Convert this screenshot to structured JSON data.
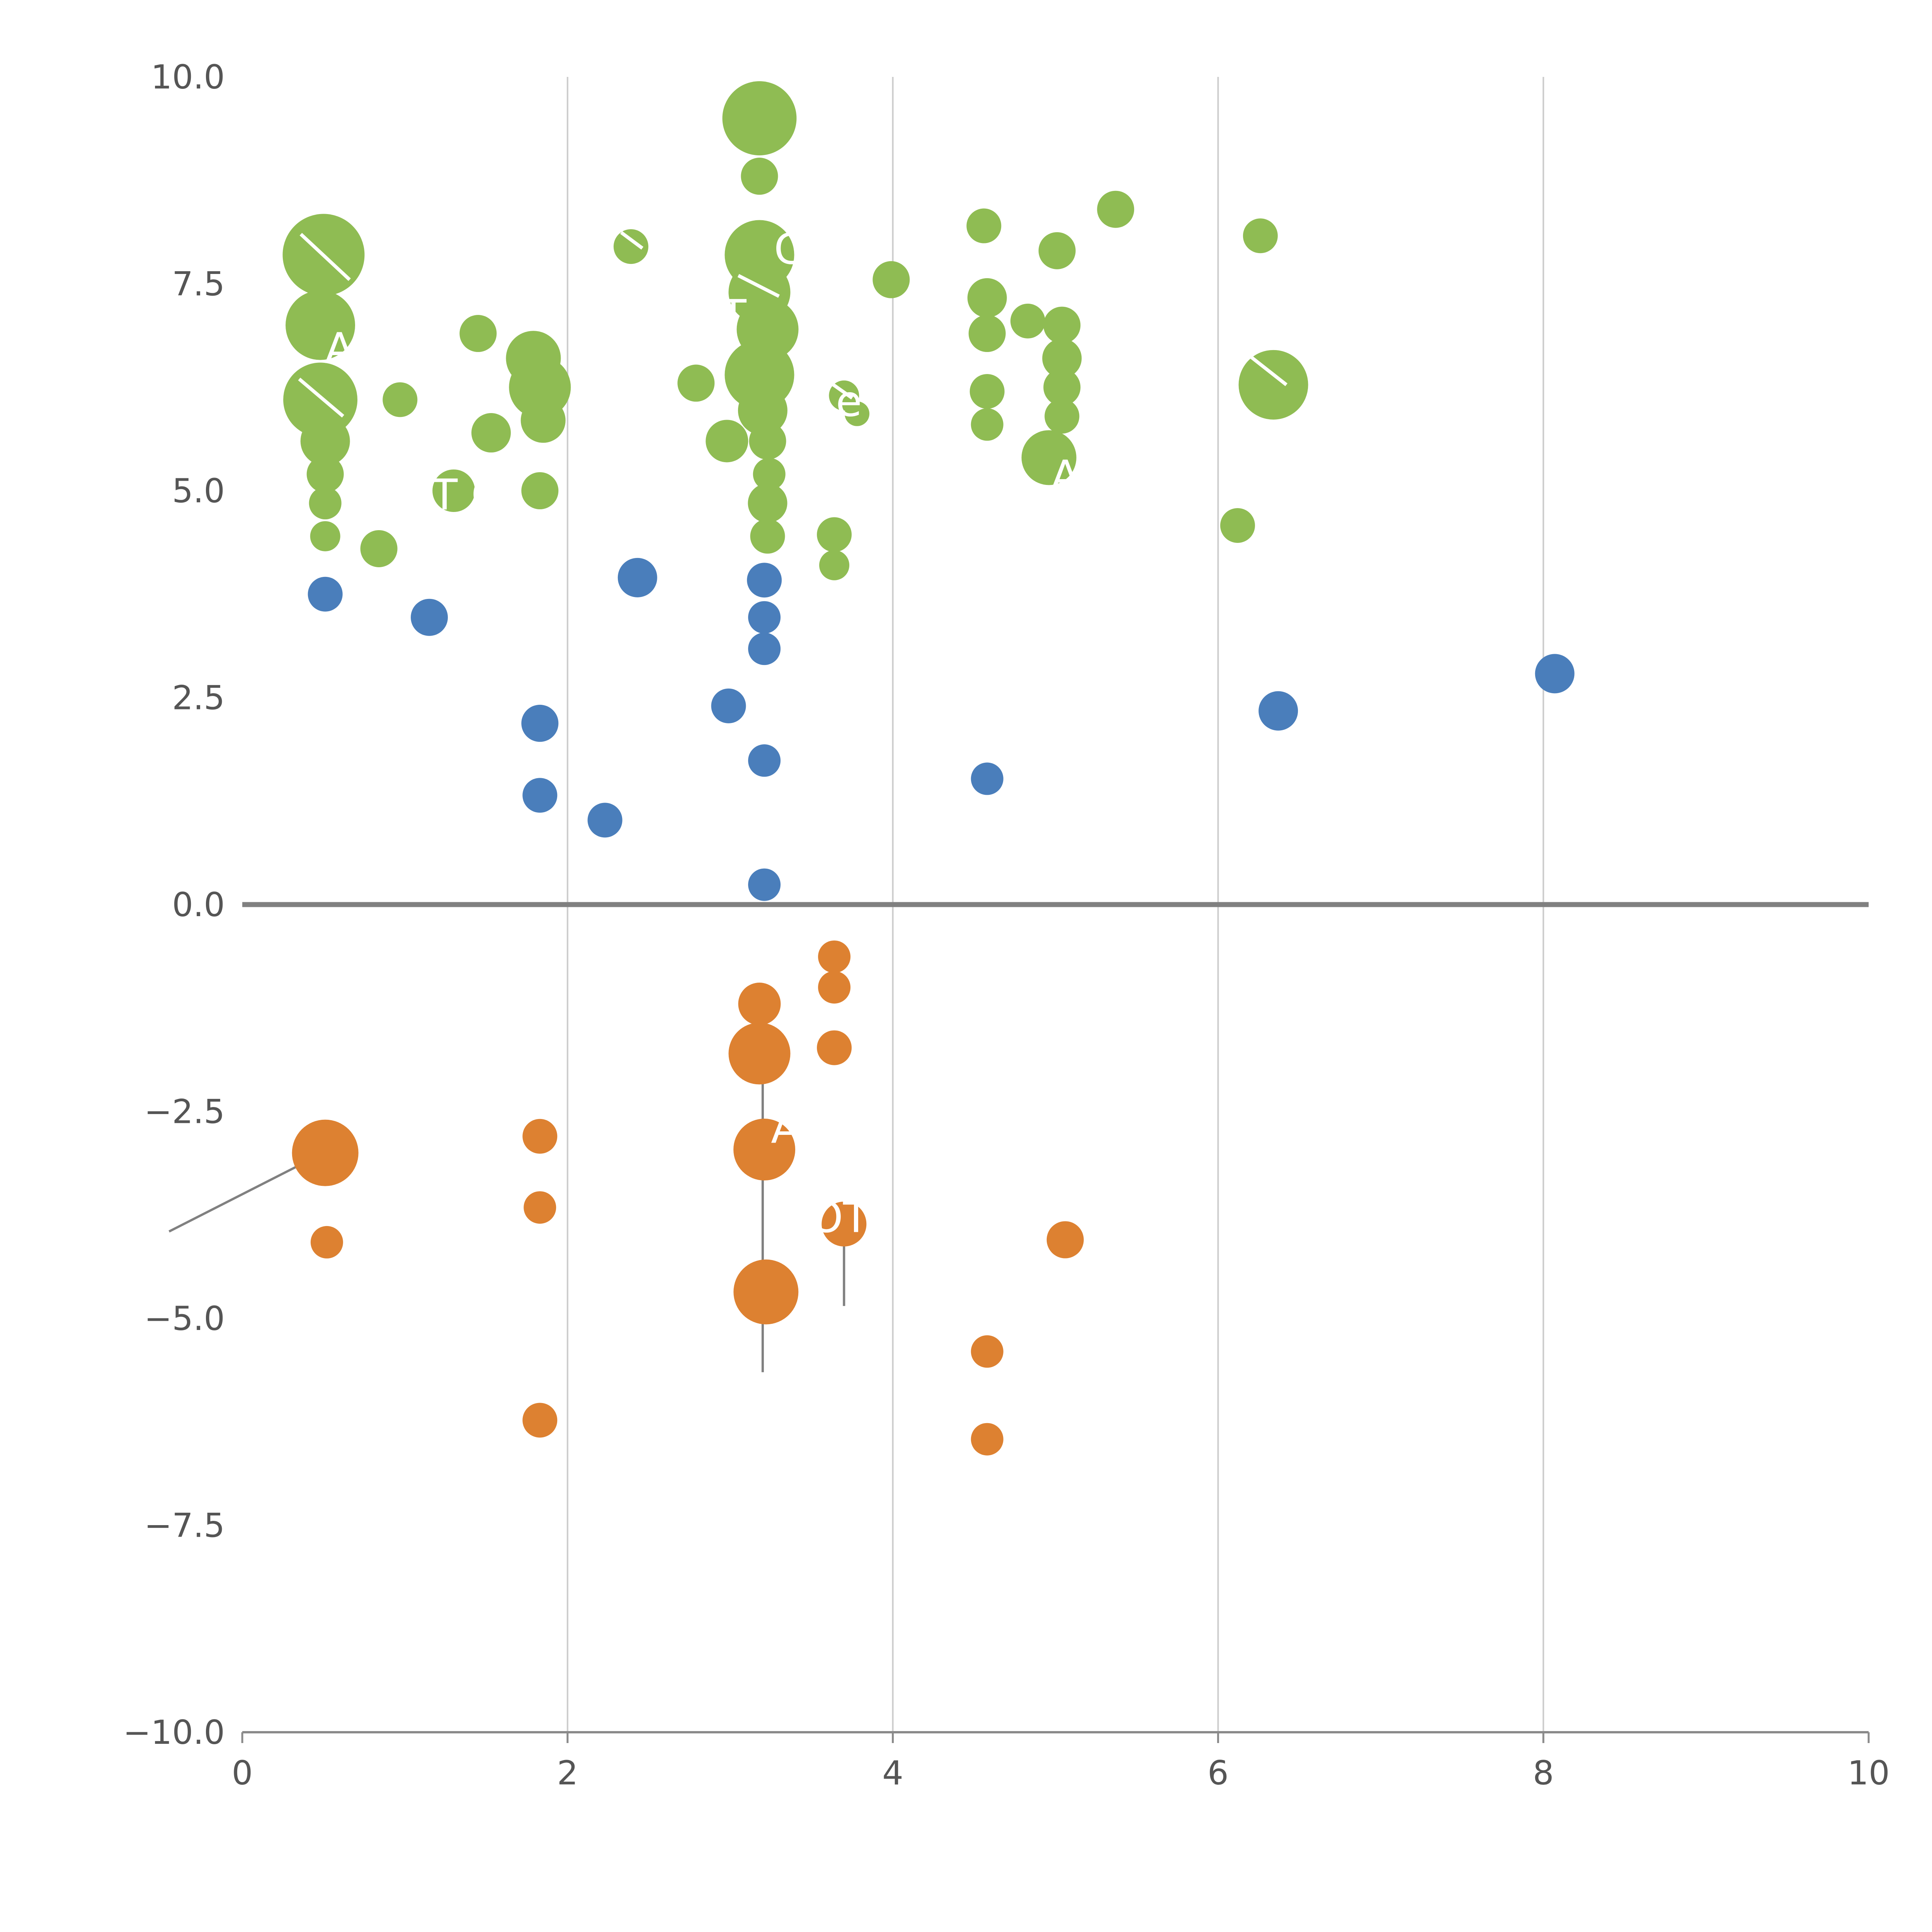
{
  "chart_data": {
    "type": "scatter",
    "title": "",
    "xlabel": "",
    "ylabel": "",
    "xlim": [
      0,
      10
    ],
    "ylim": [
      -10,
      10
    ],
    "x_ticks": [
      0,
      2,
      4,
      6,
      8,
      10
    ],
    "x_tick_labels": [
      "0",
      "2",
      "4",
      "6",
      "8",
      "10"
    ],
    "y_ticks": [
      -10,
      -7.5,
      -5,
      -2.5,
      0,
      2.5,
      5,
      7.5,
      10
    ],
    "y_tick_labels": [
      "−10.0",
      "−7.5",
      "−5.0",
      "−2.5",
      "0.0",
      "2.5",
      "5.0",
      "7.5",
      "10.0"
    ],
    "grid_x": [
      2,
      4,
      6,
      8
    ],
    "grid_color": "#cccccc",
    "zero_line_y": 0,
    "zero_line_color": "#808080",
    "axis_color": "#8a8a8a",
    "tick_label_color": "#555555",
    "legend": "none",
    "series": [
      {
        "name": "green",
        "color": "#8fbc53",
        "points": [
          [
            0.5,
            7.85,
            106
          ],
          [
            0.48,
            7.0,
            90
          ],
          [
            0.48,
            6.1,
            96
          ],
          [
            0.51,
            5.6,
            64
          ],
          [
            0.51,
            5.2,
            48
          ],
          [
            0.51,
            4.85,
            42
          ],
          [
            0.51,
            4.45,
            39
          ],
          [
            0.84,
            4.3,
            48
          ],
          [
            0.97,
            6.1,
            45
          ],
          [
            1.45,
            6.9,
            48
          ],
          [
            1.3,
            5.0,
            55
          ],
          [
            1.53,
            5.7,
            51
          ],
          [
            1.79,
            6.6,
            71
          ],
          [
            1.83,
            6.25,
            80
          ],
          [
            1.85,
            5.85,
            58
          ],
          [
            1.83,
            5.0,
            48
          ],
          [
            2.39,
            7.95,
            45
          ],
          [
            2.79,
            6.3,
            48
          ],
          [
            2.98,
            5.6,
            55
          ],
          [
            3.18,
            9.5,
            96
          ],
          [
            3.18,
            8.8,
            48
          ],
          [
            3.18,
            7.85,
            90
          ],
          [
            3.18,
            7.4,
            80
          ],
          [
            3.23,
            6.95,
            80
          ],
          [
            3.18,
            6.4,
            90
          ],
          [
            3.2,
            5.97,
            64
          ],
          [
            3.23,
            5.6,
            48
          ],
          [
            3.24,
            5.2,
            42
          ],
          [
            3.23,
            4.85,
            51
          ],
          [
            3.23,
            4.45,
            45
          ],
          [
            3.7,
            6.15,
            39
          ],
          [
            3.78,
            5.93,
            32
          ],
          [
            3.64,
            4.47,
            45
          ],
          [
            3.64,
            4.1,
            39
          ],
          [
            3.99,
            7.55,
            48
          ],
          [
            4.56,
            8.2,
            45
          ],
          [
            4.58,
            7.33,
            51
          ],
          [
            4.58,
            6.9,
            48
          ],
          [
            4.58,
            6.2,
            45
          ],
          [
            4.58,
            5.8,
            42
          ],
          [
            4.83,
            7.05,
            45
          ],
          [
            5.01,
            7.9,
            48
          ],
          [
            5.04,
            7.0,
            48
          ],
          [
            5.04,
            6.6,
            51
          ],
          [
            5.04,
            6.25,
            48
          ],
          [
            5.04,
            5.9,
            45
          ],
          [
            4.96,
            5.4,
            71
          ],
          [
            5.37,
            8.4,
            48
          ],
          [
            6.26,
            8.08,
            45
          ],
          [
            6.34,
            6.28,
            90
          ],
          [
            6.12,
            4.58,
            45
          ]
        ]
      },
      {
        "name": "blue",
        "color": "#4a7ebb",
        "points": [
          [
            0.51,
            3.75,
            45
          ],
          [
            1.15,
            3.47,
            48
          ],
          [
            2.43,
            3.95,
            51
          ],
          [
            1.83,
            2.19,
            48
          ],
          [
            1.83,
            1.32,
            45
          ],
          [
            2.23,
            1.02,
            45
          ],
          [
            2.99,
            2.4,
            45
          ],
          [
            3.21,
            3.92,
            45
          ],
          [
            3.21,
            3.47,
            42
          ],
          [
            3.21,
            3.09,
            42
          ],
          [
            3.21,
            1.74,
            42
          ],
          [
            3.21,
            0.24,
            42
          ],
          [
            4.58,
            1.52,
            42
          ],
          [
            6.37,
            2.34,
            51
          ],
          [
            8.07,
            2.79,
            51
          ]
        ]
      },
      {
        "name": "orange",
        "color": "#dd8131",
        "points": [
          [
            0.51,
            -3.0,
            86
          ],
          [
            0.52,
            -4.08,
            42
          ],
          [
            1.83,
            -2.8,
            45
          ],
          [
            1.83,
            -3.66,
            42
          ],
          [
            1.83,
            -6.23,
            45
          ],
          [
            3.18,
            -1.2,
            55
          ],
          [
            3.18,
            -1.8,
            80
          ],
          [
            3.21,
            -2.96,
            80
          ],
          [
            3.22,
            -4.68,
            84
          ],
          [
            3.64,
            -0.63,
            42
          ],
          [
            3.64,
            -1.0,
            42
          ],
          [
            3.64,
            -1.73,
            45
          ],
          [
            3.7,
            -3.86,
            58
          ],
          [
            5.06,
            -4.05,
            48
          ],
          [
            4.58,
            -5.4,
            42
          ],
          [
            4.58,
            -6.46,
            42
          ]
        ]
      }
    ],
    "annotations": [
      {
        "text": "ADE",
        "x": 0.78,
        "y": 6.72,
        "color": "#ffffff"
      },
      {
        "text": "IT O",
        "x": 1.35,
        "y": 4.95,
        "color": "#ffffff"
      },
      {
        "text": "e",
        "x": 3.73,
        "y": 6.08,
        "color": "#ffffff"
      },
      {
        "text": "A",
        "x": 5.06,
        "y": 5.18,
        "color": "#ffffff"
      },
      {
        "text": "A",
        "x": 3.34,
        "y": -2.7,
        "color": "#ffffff"
      },
      {
        "text": "COT",
        "x": 3.58,
        "y": -3.78,
        "color": "#ffffff"
      },
      {
        "text": "T",
        "x": 3.02,
        "y": 7.12,
        "color": "#ffffff"
      },
      {
        "text": "C",
        "x": 3.36,
        "y": 7.92,
        "color": "#ffffff"
      }
    ],
    "leader_lines": [
      {
        "x1": -0.45,
        "y1": -3.95,
        "x2": 0.45,
        "y2": -3.05,
        "color": "#808080"
      },
      {
        "x1": 3.2,
        "y1": -1.9,
        "x2": 3.2,
        "y2": -5.65,
        "color": "#808080"
      },
      {
        "x1": 3.7,
        "y1": -3.85,
        "x2": 3.7,
        "y2": -4.85,
        "color": "#808080"
      }
    ],
    "white_segments": [
      {
        "x1": 0.36,
        "y1": 8.1,
        "x2": 0.66,
        "y2": 7.55
      },
      {
        "x1": 0.35,
        "y1": 6.35,
        "x2": 0.62,
        "y2": 5.9
      },
      {
        "x1": 2.33,
        "y1": 8.12,
        "x2": 2.46,
        "y2": 7.93
      },
      {
        "x1": 3.05,
        "y1": 7.6,
        "x2": 3.3,
        "y2": 7.35
      },
      {
        "x1": 6.2,
        "y1": 6.62,
        "x2": 6.42,
        "y2": 6.28
      },
      {
        "x1": 3.62,
        "y1": 6.3,
        "x2": 3.75,
        "y2": 6.12
      }
    ]
  }
}
